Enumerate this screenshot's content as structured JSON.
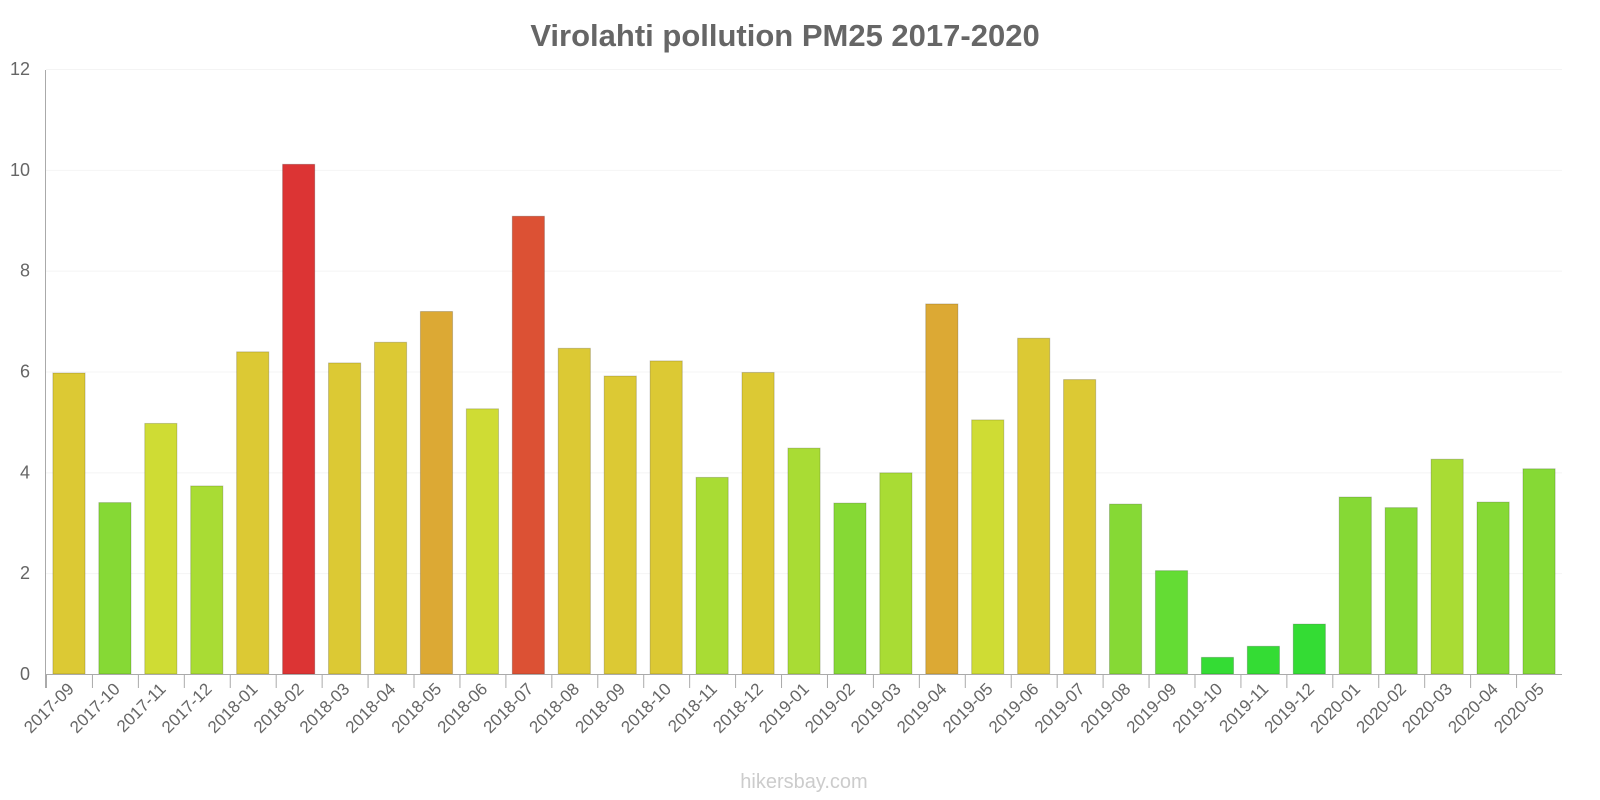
{
  "chart_data": {
    "type": "bar",
    "title": "Virolahti pollution PM25 2017-2020",
    "xlabel": "",
    "ylabel": "",
    "ylim": [
      0,
      12
    ],
    "yticks": [
      "0",
      "2",
      "4",
      "6",
      "8",
      "10",
      "12"
    ],
    "grid": true,
    "legend": "none",
    "categories": [
      "2017-09",
      "2017-10",
      "2017-11",
      "2017-12",
      "2018-01",
      "2018-02",
      "2018-03",
      "2018-04",
      "2018-05",
      "2018-06",
      "2018-07",
      "2018-08",
      "2018-09",
      "2018-10",
      "2018-11",
      "2018-12",
      "2019-01",
      "2019-02",
      "2019-03",
      "2019-04",
      "2019-05",
      "2019-06",
      "2019-07",
      "2019-08",
      "2019-09",
      "2019-10",
      "2019-11",
      "2019-12",
      "2020-01",
      "2020-02",
      "2020-03",
      "2020-04",
      "2020-05"
    ],
    "values": [
      5.97,
      3.4,
      4.97,
      3.73,
      6.39,
      10.11,
      6.17,
      6.58,
      7.19,
      5.26,
      9.08,
      6.46,
      5.91,
      6.21,
      3.9,
      5.98,
      4.48,
      3.39,
      3.99,
      7.34,
      5.04,
      6.66,
      5.84,
      3.37,
      2.05,
      0.33,
      0.55,
      0.99,
      3.51,
      3.3,
      4.26,
      3.41,
      4.07
    ],
    "colors": [
      "#dcc934",
      "#86d935",
      "#cfdc34",
      "#a9dc34",
      "#dcc934",
      "#dc3434",
      "#dcc934",
      "#dcc934",
      "#dca934",
      "#cfdc34",
      "#dc5134",
      "#dcc934",
      "#dcc934",
      "#dcc934",
      "#a9dc34",
      "#dcc934",
      "#a9dc34",
      "#86d935",
      "#a9dc34",
      "#dca934",
      "#cfdc34",
      "#dcc934",
      "#dcc934",
      "#86d935",
      "#64dc34",
      "#34dc34",
      "#34dc34",
      "#34dc34",
      "#86d935",
      "#86d935",
      "#a9dc34",
      "#86d935",
      "#86d935"
    ]
  },
  "watermark": "hikersbay.com"
}
